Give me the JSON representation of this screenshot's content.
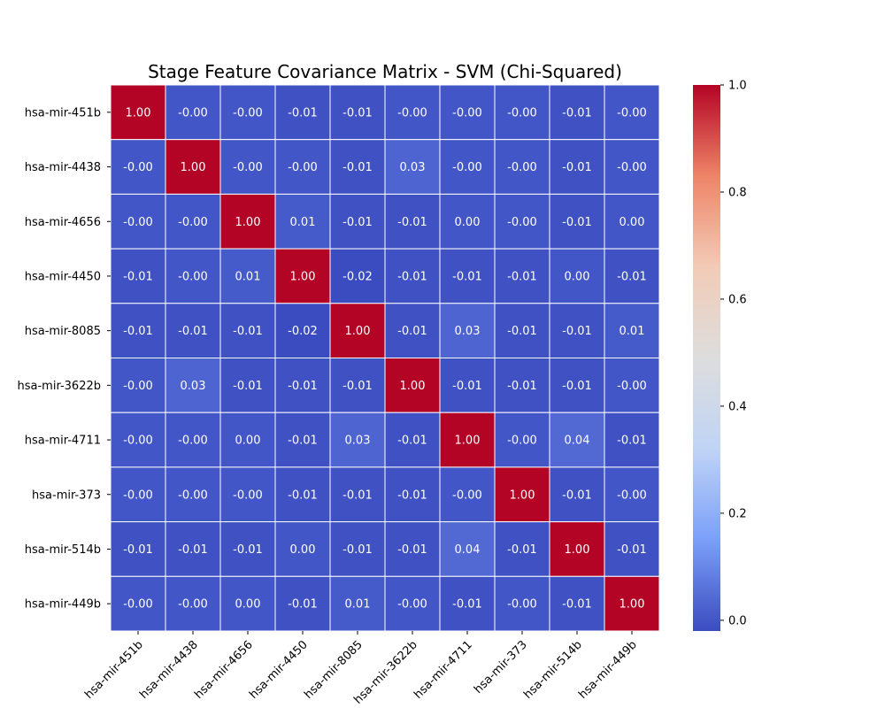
{
  "chart_data": {
    "type": "heatmap",
    "title": "Stage Feature Covariance Matrix - SVM (Chi-Squared)",
    "xlabel": "",
    "ylabel": "",
    "x_labels": [
      "hsa-mir-451b",
      "hsa-mir-4438",
      "hsa-mir-4656",
      "hsa-mir-4450",
      "hsa-mir-8085",
      "hsa-mir-3622b",
      "hsa-mir-4711",
      "hsa-mir-373",
      "hsa-mir-514b",
      "hsa-mir-449b"
    ],
    "y_labels": [
      "hsa-mir-451b",
      "hsa-mir-4438",
      "hsa-mir-4656",
      "hsa-mir-4450",
      "hsa-mir-8085",
      "hsa-mir-3622b",
      "hsa-mir-4711",
      "hsa-mir-373",
      "hsa-mir-514b",
      "hsa-mir-449b"
    ],
    "values": [
      [
        1.0,
        -0.0,
        -0.0,
        -0.01,
        -0.01,
        -0.0,
        -0.0,
        -0.0,
        -0.01,
        -0.0
      ],
      [
        -0.0,
        1.0,
        -0.0,
        -0.0,
        -0.01,
        0.03,
        -0.0,
        -0.0,
        -0.01,
        -0.0
      ],
      [
        -0.0,
        -0.0,
        1.0,
        0.01,
        -0.01,
        -0.01,
        0.0,
        -0.0,
        -0.01,
        0.0
      ],
      [
        -0.01,
        -0.0,
        0.01,
        1.0,
        -0.02,
        -0.01,
        -0.01,
        -0.01,
        0.0,
        -0.01
      ],
      [
        -0.01,
        -0.01,
        -0.01,
        -0.02,
        1.0,
        -0.01,
        0.03,
        -0.01,
        -0.01,
        0.01
      ],
      [
        -0.0,
        0.03,
        -0.01,
        -0.01,
        -0.01,
        1.0,
        -0.01,
        -0.01,
        -0.01,
        -0.0
      ],
      [
        -0.0,
        -0.0,
        0.0,
        -0.01,
        0.03,
        -0.01,
        1.0,
        -0.0,
        0.04,
        -0.01
      ],
      [
        -0.0,
        -0.0,
        -0.0,
        -0.01,
        -0.01,
        -0.01,
        -0.0,
        1.0,
        -0.01,
        -0.0
      ],
      [
        -0.01,
        -0.01,
        -0.01,
        0.0,
        -0.01,
        -0.01,
        0.04,
        -0.01,
        1.0,
        -0.01
      ],
      [
        -0.0,
        -0.0,
        0.0,
        -0.01,
        0.01,
        -0.0,
        -0.01,
        -0.0,
        -0.01,
        1.0
      ]
    ],
    "cell_labels": [
      [
        "1.00",
        "-0.00",
        "-0.00",
        "-0.01",
        "-0.01",
        "-0.00",
        "-0.00",
        "-0.00",
        "-0.01",
        "-0.00"
      ],
      [
        "-0.00",
        "1.00",
        "-0.00",
        "-0.00",
        "-0.01",
        "0.03",
        "-0.00",
        "-0.00",
        "-0.01",
        "-0.00"
      ],
      [
        "-0.00",
        "-0.00",
        "1.00",
        "0.01",
        "-0.01",
        "-0.01",
        "0.00",
        "-0.00",
        "-0.01",
        "0.00"
      ],
      [
        "-0.01",
        "-0.00",
        "0.01",
        "1.00",
        "-0.02",
        "-0.01",
        "-0.01",
        "-0.01",
        "0.00",
        "-0.01"
      ],
      [
        "-0.01",
        "-0.01",
        "-0.01",
        "-0.02",
        "1.00",
        "-0.01",
        "0.03",
        "-0.01",
        "-0.01",
        "0.01"
      ],
      [
        "-0.00",
        "0.03",
        "-0.01",
        "-0.01",
        "-0.01",
        "1.00",
        "-0.01",
        "-0.01",
        "-0.01",
        "-0.00"
      ],
      [
        "-0.00",
        "-0.00",
        "0.00",
        "-0.01",
        "0.03",
        "-0.01",
        "1.00",
        "-0.00",
        "0.04",
        "-0.01"
      ],
      [
        "-0.00",
        "-0.00",
        "-0.00",
        "-0.01",
        "-0.01",
        "-0.01",
        "-0.00",
        "1.00",
        "-0.01",
        "-0.00"
      ],
      [
        "-0.01",
        "-0.01",
        "-0.01",
        "0.00",
        "-0.01",
        "-0.01",
        "0.04",
        "-0.01",
        "1.00",
        "-0.01"
      ],
      [
        "-0.00",
        "-0.00",
        "0.00",
        "-0.01",
        "0.01",
        "-0.00",
        "-0.01",
        "-0.00",
        "-0.01",
        "1.00"
      ]
    ],
    "colormap": "coolwarm",
    "colormap_stops": [
      "#3b4cc0",
      "#7b9ff9",
      "#c0d4f5",
      "#dddddd",
      "#f2cbb7",
      "#ee8468",
      "#b40426"
    ],
    "vmin": -0.02,
    "vmax": 1.0,
    "colorbar_ticks": [
      0.0,
      0.2,
      0.4,
      0.6,
      0.8,
      1.0
    ],
    "colorbar_tick_labels": [
      "0.0",
      "0.2",
      "0.4",
      "0.6",
      "0.8",
      "1.0"
    ],
    "grid": true,
    "grid_color": "#ffffff",
    "colorbar_position": "right"
  }
}
